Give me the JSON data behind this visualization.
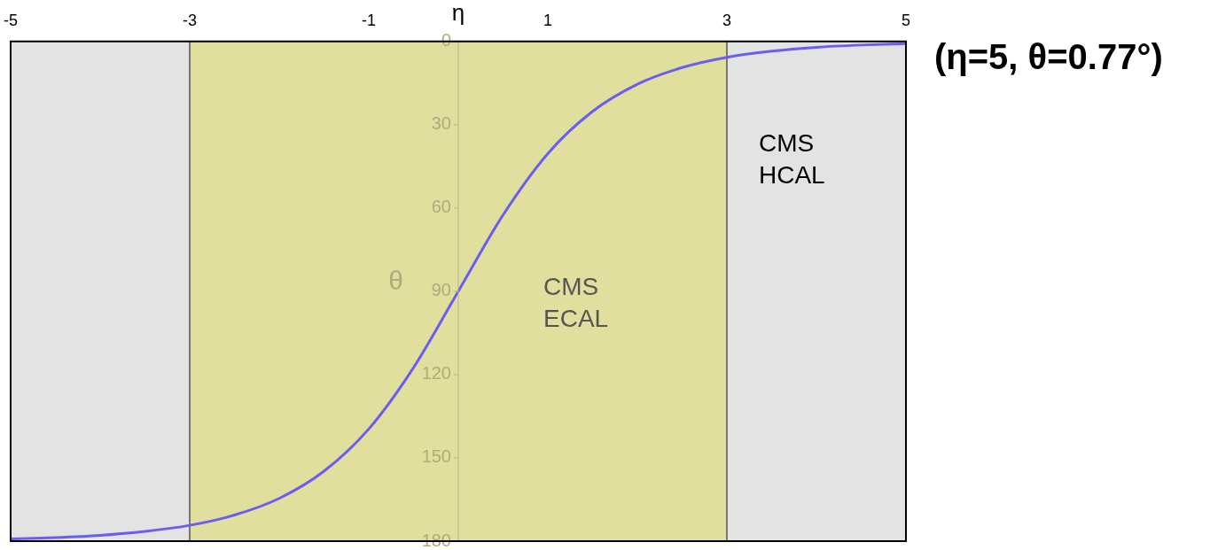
{
  "chart_data": {
    "type": "line",
    "xlabel": "η",
    "ylabel": "θ",
    "x": [
      -5,
      -4.5,
      -4,
      -3.5,
      -3,
      -2.5,
      -2,
      -1.5,
      -1,
      -0.5,
      0,
      0.5,
      1,
      1.5,
      2,
      2.5,
      3,
      3.5,
      4,
      4.5,
      5
    ],
    "series": [
      {
        "color": "#6b5cf2",
        "values": [
          179.2,
          178.7,
          177.9,
          176.5,
          174.3,
          170.6,
          164.6,
          154.8,
          139.6,
          117.5,
          90,
          62.5,
          40.4,
          25.2,
          15.4,
          9.4,
          5.7,
          3.5,
          2.1,
          1.3,
          0.8
        ]
      }
    ],
    "xlim": [
      -5,
      5
    ],
    "xticks": [
      -5,
      -3,
      -1,
      1,
      3,
      5
    ],
    "ylim": [
      180,
      0
    ],
    "yticks": [
      0,
      30,
      60,
      90,
      120,
      150,
      180
    ],
    "marker": "none",
    "bands": [
      {
        "axis": "x",
        "from": -5,
        "to": 5,
        "label": "CMS HCAL",
        "color": "#e3e3e3"
      },
      {
        "axis": "x",
        "from": -3,
        "to": 3,
        "label": "CMS ECAL",
        "color": "#e0df9e"
      }
    ],
    "annotations": [
      {
        "text": "(η=5, θ=0.77°)",
        "x": 5,
        "y": 0.8
      }
    ]
  }
}
